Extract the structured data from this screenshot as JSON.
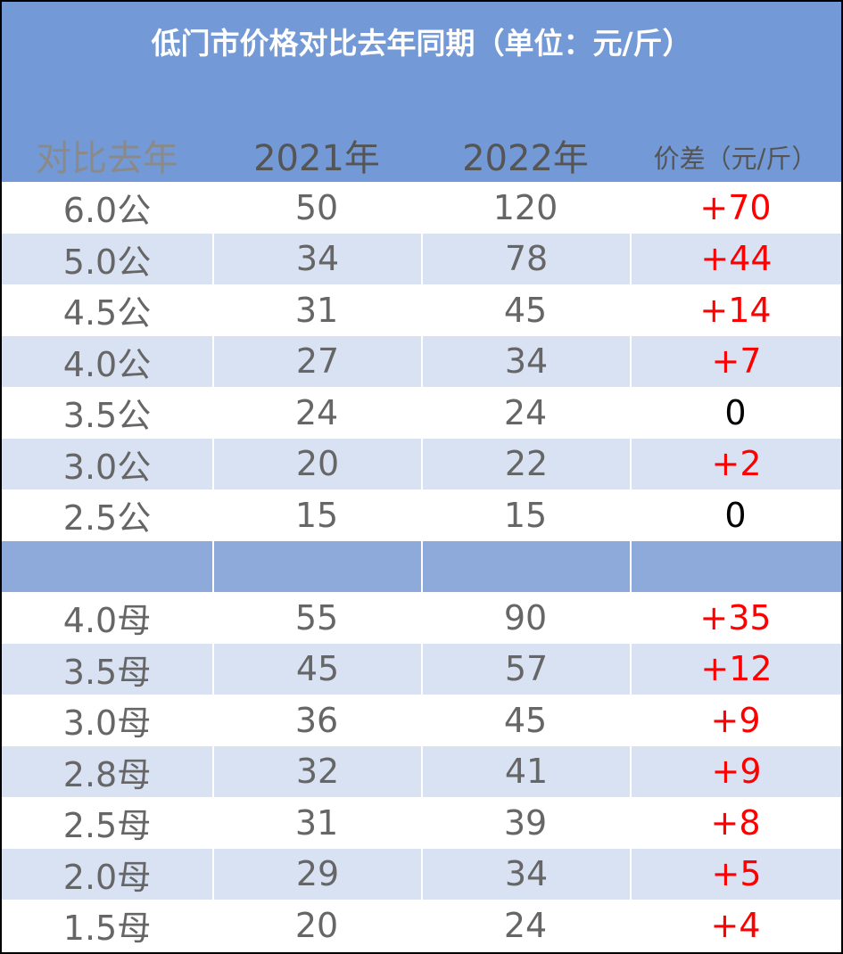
{
  "title": "低门市价格对比去年同期（单位：元/斤）",
  "columns": [
    "对比去年",
    "2021年",
    "2022年",
    "价差（元/斤）"
  ],
  "rows": [
    {
      "label": "6.0公",
      "y2021": "50",
      "y2022": "120",
      "diff": "+70"
    },
    {
      "label": "5.0公",
      "y2021": "34",
      "y2022": "78",
      "diff": "+44"
    },
    {
      "label": "4.5公",
      "y2021": "31",
      "y2022": "45",
      "diff": "+14"
    },
    {
      "label": "4.0公",
      "y2021": "27",
      "y2022": "34",
      "diff": "+7"
    },
    {
      "label": "3.5公",
      "y2021": "24",
      "y2022": "24",
      "diff": "0"
    },
    {
      "label": "3.0公",
      "y2021": "20",
      "y2022": "22",
      "diff": "+2"
    },
    {
      "label": "2.5公",
      "y2021": "15",
      "y2022": "15",
      "diff": "0"
    },
    {
      "separator": true
    },
    {
      "label": "4.0母",
      "y2021": "55",
      "y2022": "90",
      "diff": "+35"
    },
    {
      "label": "3.5母",
      "y2021": "45",
      "y2022": "57",
      "diff": "+12"
    },
    {
      "label": "3.0母",
      "y2021": "36",
      "y2022": "45",
      "diff": "+9"
    },
    {
      "label": "2.8母",
      "y2021": "32",
      "y2022": "41",
      "diff": "+9"
    },
    {
      "label": "2.5母",
      "y2021": "31",
      "y2022": "39",
      "diff": "+8"
    },
    {
      "label": "2.0母",
      "y2021": "29",
      "y2022": "34",
      "diff": "+5"
    },
    {
      "label": "1.5母",
      "y2021": "20",
      "y2022": "24",
      "diff": "+4"
    }
  ],
  "colors": {
    "header_bg": "#7399d6",
    "band_bg": "#d9e2f3",
    "separator_bg": "#8eaadb",
    "positive_diff": "#ff0000",
    "zero_diff": "#000000"
  }
}
